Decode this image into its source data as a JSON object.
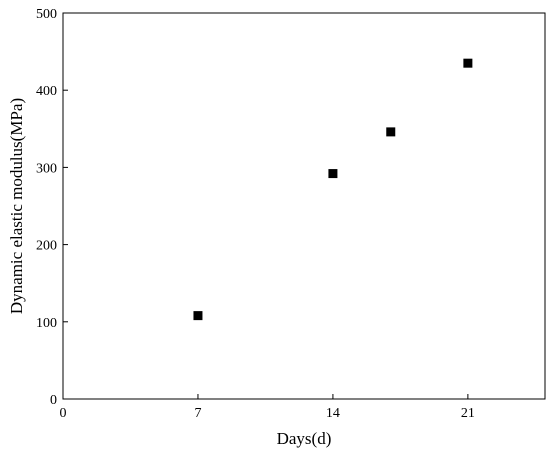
{
  "chart_data": {
    "type": "scatter",
    "title": "",
    "xlabel": "Days(d)",
    "ylabel": "Dynamic elastic modulus(MPa)",
    "xlim": [
      0,
      25
    ],
    "ylim": [
      0,
      500
    ],
    "xticks": [
      0,
      7,
      14,
      21
    ],
    "yticks": [
      0,
      100,
      200,
      300,
      400,
      500
    ],
    "grid": false,
    "legend": "none",
    "marker": "square",
    "marker_color": "#000000",
    "series": [
      {
        "x": [
          7,
          14,
          17,
          21
        ],
        "y": [
          108,
          292,
          346,
          435
        ]
      }
    ]
  }
}
